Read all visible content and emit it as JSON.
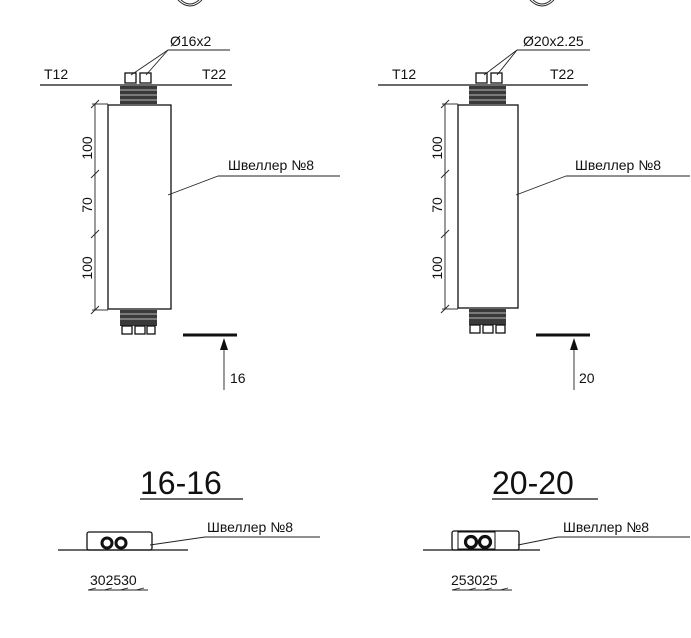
{
  "left": {
    "pipe_label": "Ø16x2",
    "line_left": "T12",
    "line_right": "T22",
    "dims": [
      "100",
      "70",
      "100"
    ],
    "channel_label": "Швеллер №8",
    "cut_number": "16",
    "section_title": "16-16",
    "section_channel_label": "Швеллер №8",
    "section_dims": "302530"
  },
  "right": {
    "pipe_label": "Ø20x2.25",
    "line_left": "T12",
    "line_right": "T22",
    "dims": [
      "100",
      "70",
      "100"
    ],
    "channel_label": "Швеллер №8",
    "cut_number": "20",
    "section_title": "20-20",
    "section_channel_label": "Швеллер №8",
    "section_dims": "253025"
  }
}
